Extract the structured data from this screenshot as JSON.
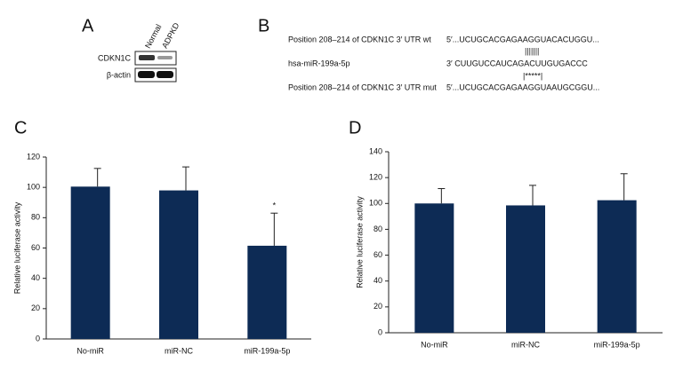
{
  "panel_labels": [
    "A",
    "B",
    "C",
    "D"
  ],
  "blot": {
    "columns": [
      "Normal",
      "ADPKD"
    ],
    "rows": [
      "CDKN1C",
      "β-actin"
    ]
  },
  "sequences": {
    "rows": [
      {
        "name": "Position 208–214 of CDKN1C 3′ UTR wt",
        "sequence": "5′...UCUGCACGAGAAGGUACACUGGU..."
      },
      {
        "name": "hsa-miR-199a-5p",
        "sequence": "3′    CUUGUCCAUCAGACUUGUGACCC"
      },
      {
        "name": "Position 208–214 of CDKN1C 3′ UTR mut",
        "sequence": "5′...UCUGCACGAGAAGGUAAUGCGGU..."
      }
    ],
    "pairing": [
      "|||||||",
      "|*****|"
    ]
  },
  "chart_data": [
    {
      "type": "bar",
      "y_label": "Relative luciferase activity",
      "categories": [
        "No-miR",
        "miR-NC",
        "miR-199a-5p"
      ],
      "values": [
        100.5,
        98,
        61.5
      ],
      "errors": [
        12,
        15.5,
        21.5
      ],
      "color": "#0d2b55",
      "ylim": [
        0,
        120
      ],
      "yticks": [
        0,
        20,
        40,
        60,
        80,
        100,
        120
      ],
      "annotations": [
        {
          "text": "*",
          "x": "miR-199a-5p"
        }
      ]
    },
    {
      "type": "bar",
      "y_label": "Relative luciferase activity",
      "categories": [
        "No-miR",
        "miR-NC",
        "miR-199a-5p"
      ],
      "values": [
        100,
        98.5,
        102.5
      ],
      "errors": [
        11.5,
        15.5,
        20.5
      ],
      "color": "#0d2b55",
      "ylim": [
        0,
        140
      ],
      "yticks": [
        0,
        20,
        40,
        60,
        80,
        100,
        120,
        140
      ]
    }
  ]
}
